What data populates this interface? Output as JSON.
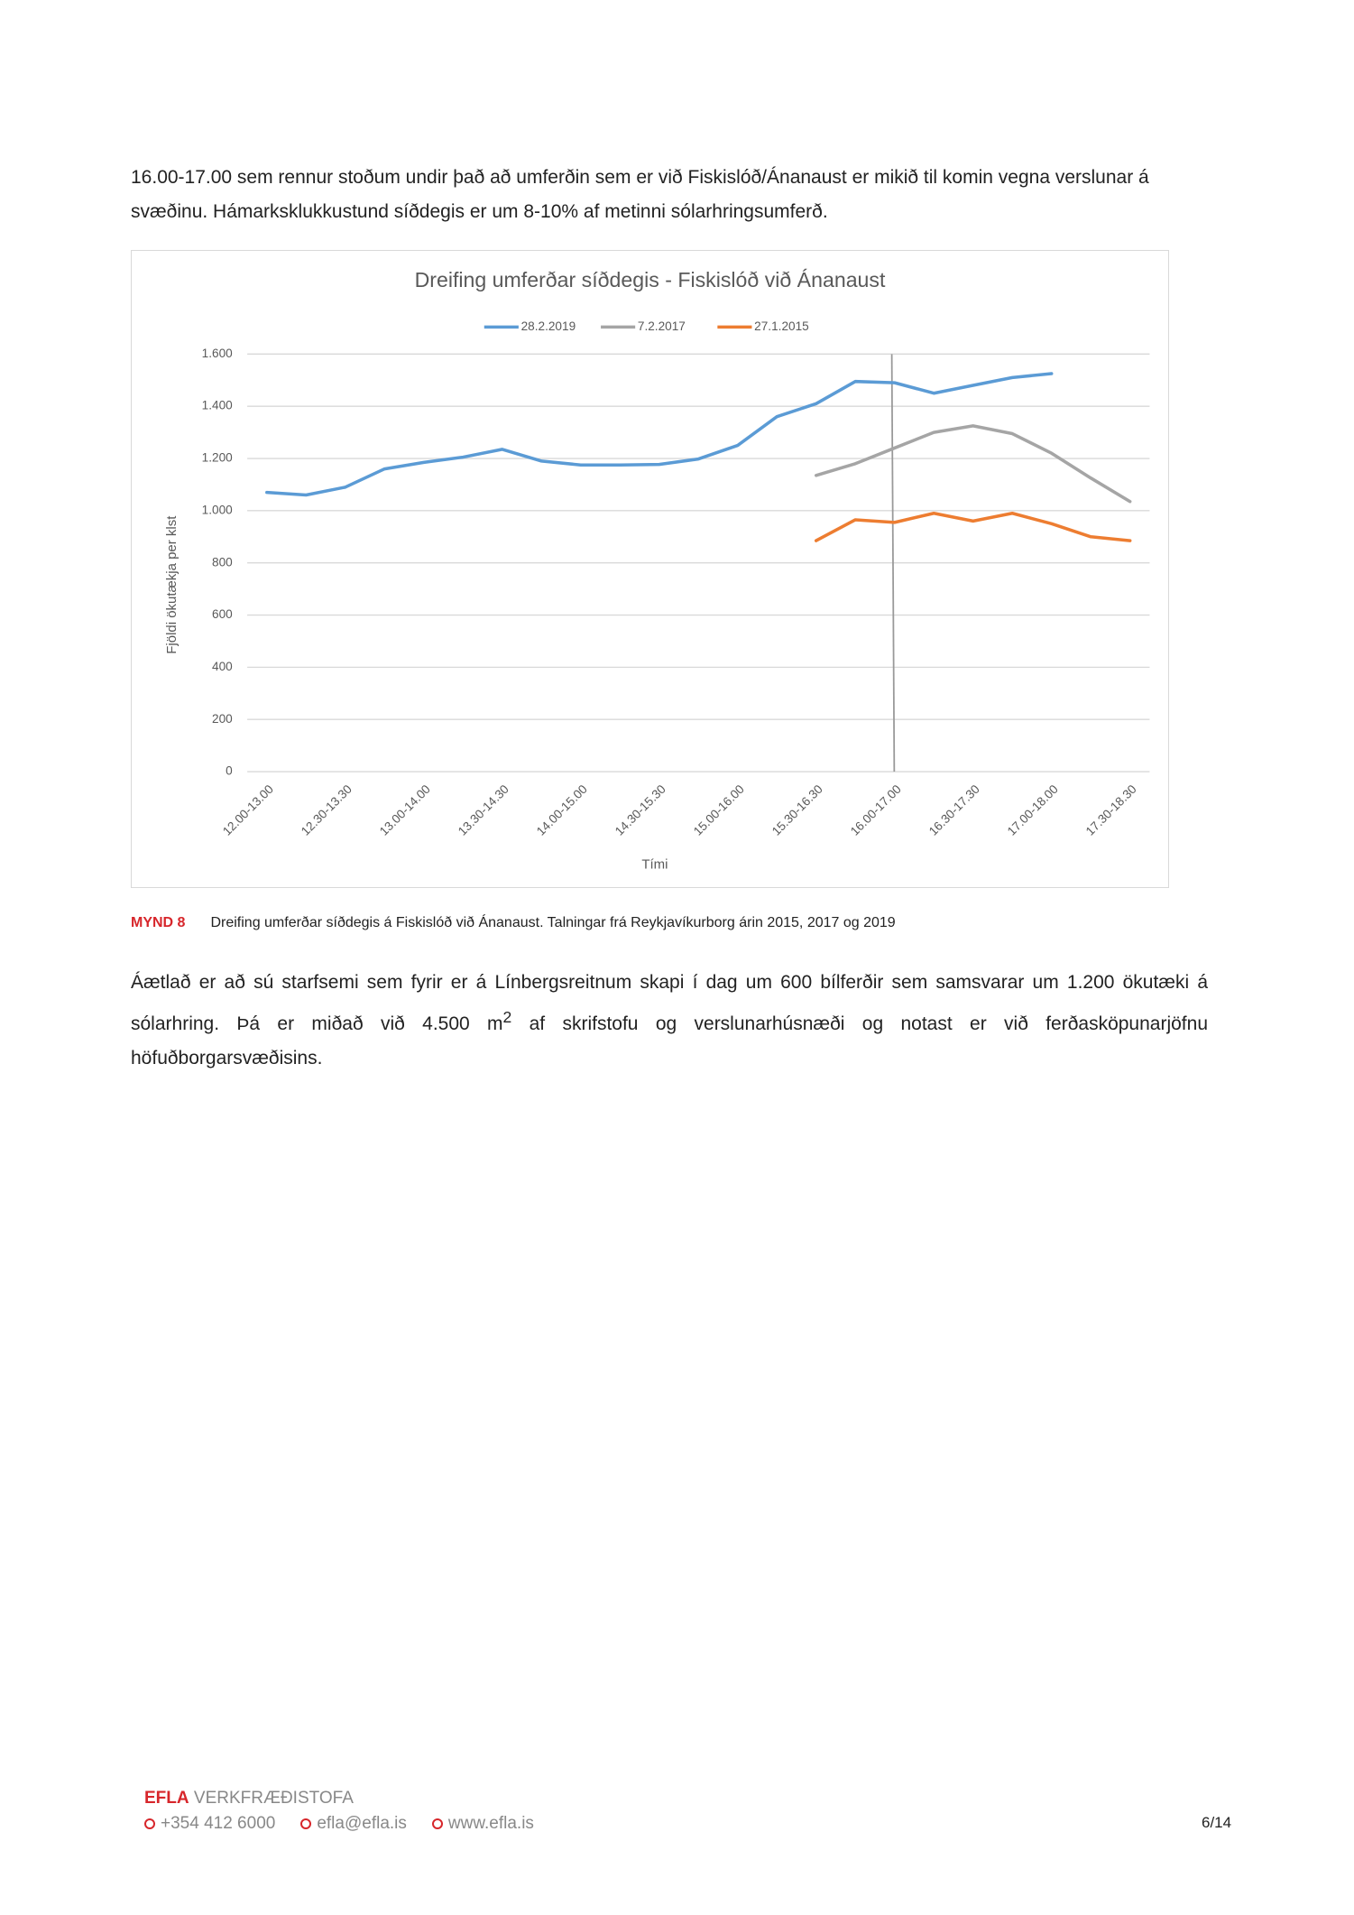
{
  "paragraph_1": "16.00-17.00 sem rennur stoðum undir það að umferðin sem er við Fiskislóð/Ánanaust er mikið til komin vegna verslunar á svæðinu. Hámarksklukkustund síðdegis er um 8-10% af metinni sólarhringsumferð.",
  "chart_data": {
    "type": "line",
    "title": "Dreifing umferðar síðdegis - Fiskislóð við Ánanaust",
    "x_label": "Tími",
    "y_label": "Fjöldi ökutækja per klst",
    "categories": [
      "12.00-13.00",
      null,
      "12.30-13.30",
      null,
      "13.00-14.00",
      null,
      "13.30-14.30",
      null,
      "14.00-15.00",
      null,
      "14.30-15.30",
      null,
      "15.00-16.00",
      null,
      "15.30-16.30",
      null,
      "16.00-17.00",
      null,
      "16.30-17.30",
      null,
      "17.00-18.00",
      null,
      "17.30-18.30"
    ],
    "series": [
      {
        "name": "28.2.2019",
        "color": "#5b9bd5",
        "values": [
          1070,
          1060,
          1090,
          1160,
          1185,
          1205,
          1235,
          1190,
          1175,
          1175,
          1177,
          1198,
          1250,
          1360,
          1410,
          1495,
          1490,
          1450,
          1480,
          1510,
          1525,
          null,
          null
        ]
      },
      {
        "name": "7.2.2017",
        "color": "#a5a5a5",
        "values": [
          null,
          null,
          null,
          null,
          null,
          null,
          null,
          null,
          null,
          null,
          null,
          null,
          null,
          null,
          1135,
          1180,
          1240,
          1300,
          1325,
          1295,
          1220,
          1125,
          1035
        ]
      },
      {
        "name": "27.1.2015",
        "color": "#ed7d31",
        "values": [
          null,
          null,
          null,
          null,
          null,
          null,
          null,
          null,
          null,
          null,
          null,
          null,
          null,
          null,
          885,
          965,
          955,
          990,
          960,
          990,
          950,
          900,
          885
        ]
      }
    ],
    "ylim": [
      0,
      1600
    ],
    "yticks": [
      0,
      200,
      400,
      600,
      800,
      {
        "value": 1000,
        "label": "1.000"
      },
      {
        "value": 1200,
        "label": "1.200"
      },
      {
        "value": 1400,
        "label": "1.400"
      },
      {
        "value": 1600,
        "label": "1.600"
      }
    ],
    "grid": true,
    "legend": "top"
  },
  "caption": {
    "label": "MYND 8",
    "text": "Dreifing umferðar síðdegis á Fiskislóð við Ánanaust. Talningar frá Reykjavíkurborg árin 2015, 2017 og 2019"
  },
  "paragraph_2": {
    "before": "Áætlað er að sú starfsemi sem fyrir er á Línbergsreitnum skapi í dag um 600 bílferðir sem samsvarar um 1.200 ökutæki á sólarhring. Þá er miðað við 4.500 m",
    "superscript": "2",
    "after": " af skrifstofu og verslunarhúsnæði og notast er við ferðasköpunarjöfnu höfuðborgarsvæðisins."
  },
  "footer": {
    "brand": "EFLA",
    "company": "VERKFRÆÐISTOFA",
    "phone": "+354 412 6000",
    "email": "efla@efla.is",
    "web": "www.efla.is",
    "page": "6/14"
  }
}
